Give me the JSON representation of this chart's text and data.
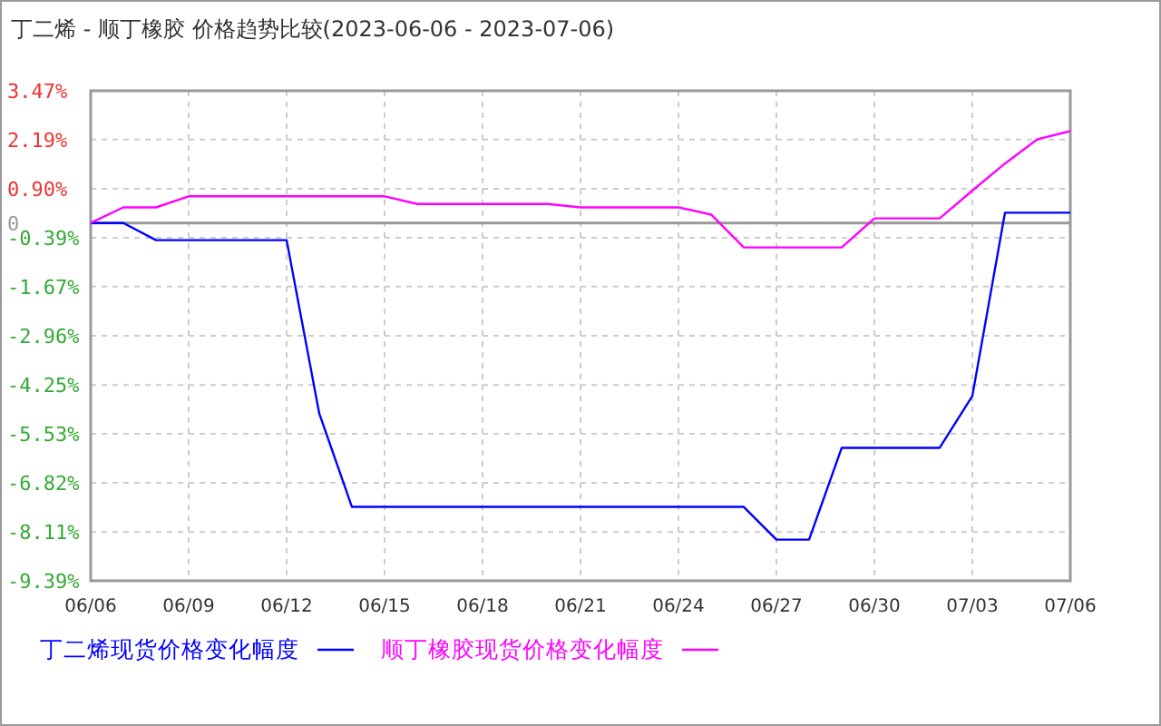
{
  "chart_data": {
    "type": "line",
    "title": "丁二烯 - 顺丁橡胶 价格趋势比较(2023-06-06 - 2023-07-06)",
    "x": [
      "2023-06-06",
      "2023-06-07",
      "2023-06-08",
      "2023-06-09",
      "2023-06-10",
      "2023-06-11",
      "2023-06-12",
      "2023-06-13",
      "2023-06-14",
      "2023-06-15",
      "2023-06-16",
      "2023-06-17",
      "2023-06-18",
      "2023-06-19",
      "2023-06-20",
      "2023-06-21",
      "2023-06-22",
      "2023-06-23",
      "2023-06-24",
      "2023-06-25",
      "2023-06-26",
      "2023-06-27",
      "2023-06-28",
      "2023-06-29",
      "2023-06-30",
      "2023-07-01",
      "2023-07-02",
      "2023-07-03",
      "2023-07-04",
      "2023-07-05",
      "2023-07-06"
    ],
    "series": [
      {
        "name": "丁二烯现货价格变化幅度",
        "color": "#0000ff",
        "values": [
          0,
          0,
          -0.45,
          -0.45,
          -0.45,
          -0.45,
          -0.45,
          -5.0,
          -7.45,
          -7.45,
          -7.45,
          -7.45,
          -7.45,
          -7.45,
          -7.45,
          -7.45,
          -7.45,
          -7.45,
          -7.45,
          -7.45,
          -7.45,
          -8.31,
          -8.31,
          -5.9,
          -5.9,
          -5.9,
          -5.9,
          -4.54,
          0.27,
          0.27,
          0.27
        ]
      },
      {
        "name": "顺丁橡胶现货价格变化幅度",
        "color": "#ff00ff",
        "values": [
          0,
          0.41,
          0.41,
          0.7,
          0.7,
          0.7,
          0.7,
          0.7,
          0.7,
          0.7,
          0.5,
          0.5,
          0.5,
          0.5,
          0.5,
          0.41,
          0.41,
          0.41,
          0.41,
          0.22,
          -0.64,
          -0.64,
          -0.64,
          -0.64,
          0.12,
          0.12,
          0.12,
          0.85,
          1.56,
          2.2,
          2.41
        ]
      }
    ],
    "xlim": [
      "2023-06-06",
      "2023-07-06"
    ],
    "xticks": [
      {
        "value": "2023-06-06",
        "label": "06/06"
      },
      {
        "value": "2023-06-09",
        "label": "06/09"
      },
      {
        "value": "2023-06-12",
        "label": "06/12"
      },
      {
        "value": "2023-06-15",
        "label": "06/15"
      },
      {
        "value": "2023-06-18",
        "label": "06/18"
      },
      {
        "value": "2023-06-21",
        "label": "06/21"
      },
      {
        "value": "2023-06-24",
        "label": "06/24"
      },
      {
        "value": "2023-06-27",
        "label": "06/27"
      },
      {
        "value": "2023-06-30",
        "label": "06/30"
      },
      {
        "value": "2023-07-03",
        "label": "07/03"
      },
      {
        "value": "2023-07-06",
        "label": "07/06"
      }
    ],
    "ylim": [
      -9.39,
      3.47
    ],
    "yticks": [
      {
        "value": 3.47,
        "label": "3.47%"
      },
      {
        "value": 2.19,
        "label": "2.19%"
      },
      {
        "value": 0.9,
        "label": "0.90%"
      },
      {
        "value": 0,
        "label": "0"
      },
      {
        "value": -0.39,
        "label": "-0.39%"
      },
      {
        "value": -1.67,
        "label": "-1.67%"
      },
      {
        "value": -2.96,
        "label": "-2.96%"
      },
      {
        "value": -4.25,
        "label": "-4.25%"
      },
      {
        "value": -5.53,
        "label": "-5.53%"
      },
      {
        "value": -6.82,
        "label": "-6.82%"
      },
      {
        "value": -8.11,
        "label": "-8.11%"
      },
      {
        "value": -9.39,
        "label": "-9.39%"
      }
    ],
    "ref_lines": [
      {
        "axis": "y",
        "value": 0,
        "color": "#999999"
      }
    ],
    "grid": true,
    "legend": "bottom",
    "marker": "none",
    "line_style": "solid"
  }
}
